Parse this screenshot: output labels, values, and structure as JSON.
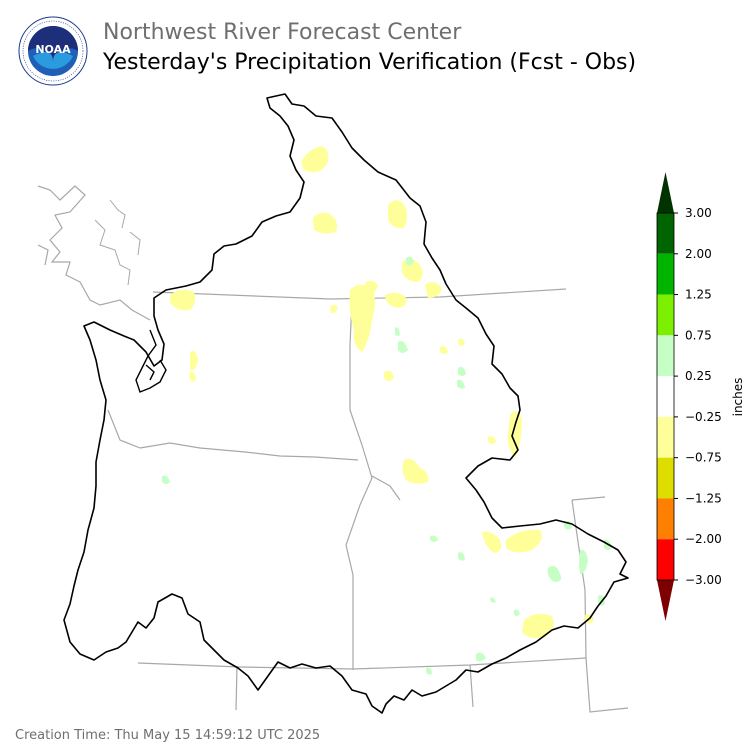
{
  "header": {
    "org_title": "Northwest River Forecast Center",
    "main_title": "Yesterday's Precipitation Verification (Fcst - Obs)"
  },
  "logo": {
    "text": "NOAA",
    "icon": "noaa-logo-icon",
    "ring_text": "NATIONAL OCEANIC AND ATMOSPHERIC ADMINISTRATION · U.S. DEPARTMENT OF COMMERCE"
  },
  "legend": {
    "unit_label": "inches",
    "ticks": [
      "3.00",
      "2.00",
      "1.25",
      "0.75",
      "0.25",
      "−0.25",
      "−0.75",
      "−1.25",
      "−2.00",
      "−3.00"
    ],
    "colors": [
      "#003300",
      "#006400",
      "#00b400",
      "#7cf000",
      "#c6ffc6",
      "#ffffff",
      "#ffff99",
      "#dddd00",
      "#ff8000",
      "#ff0000",
      "#7f0000"
    ]
  },
  "footer": {
    "creation_time": "Creation Time: Thu May 15 14:59:12 UTC 2025"
  }
}
